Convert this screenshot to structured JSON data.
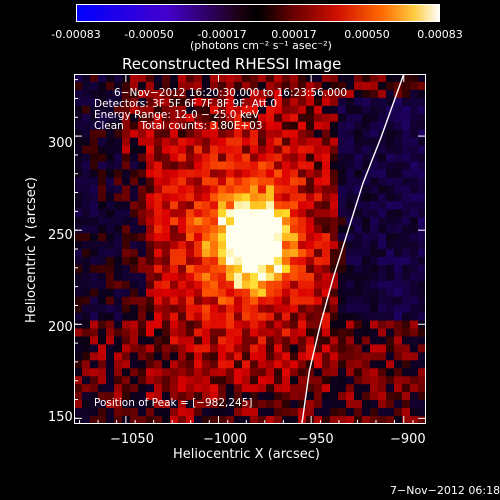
{
  "colorbar": {
    "ticks": [
      "-0.00083",
      "-0.00050",
      "-0.00017",
      "0.00017",
      "0.00050",
      "0.00083"
    ],
    "unit_label": "(photons cm⁻² s⁻¹ asec⁻²)",
    "range": [
      -0.00083,
      0.00083
    ]
  },
  "chart_data": {
    "type": "heatmap",
    "title": "Reconstructed RHESSI Image",
    "xlabel": "Heliocentric X (arcsec)",
    "ylabel": "Heliocentric Y (arcsec)",
    "xlim": [
      -1078,
      -888
    ],
    "ylim": [
      147,
      333
    ],
    "x_ticks": [
      -1050,
      -1000,
      -950,
      -900
    ],
    "y_ticks": [
      150,
      200,
      250,
      300
    ],
    "x_tick_labels": [
      "−1050",
      "−1000",
      "−950",
      "−900"
    ],
    "y_tick_labels": [
      "150",
      "200",
      "250",
      "300"
    ],
    "peak": {
      "x": -982,
      "y": 245
    },
    "limb_curve": [
      [
        -955,
        147
      ],
      [
        -951,
        175
      ],
      [
        -945,
        200
      ],
      [
        -938,
        225
      ],
      [
        -930,
        250
      ],
      [
        -922,
        275
      ],
      [
        -912,
        300
      ],
      [
        -900,
        333
      ]
    ],
    "annotations": {
      "time": "6−Nov−2012 16:20:30.000 to 16:23:56.000",
      "detectors": "Detectors: 3F 5F 6F 7F 8F 9F, Att 0",
      "energy": "Energy Range: 12.0 − 25.0 keV",
      "clean": "Clean     Total counts: 3.80E+03",
      "peak_text": "Position of Peak = [−982,245]"
    }
  },
  "footer": {
    "date": "7−Nov−2012 06:18"
  }
}
